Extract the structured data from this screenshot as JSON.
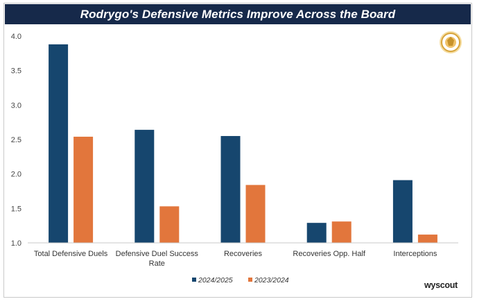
{
  "header": {
    "title": "Rodrygo's Defensive Metrics Improve Across the Board"
  },
  "brand": {
    "watermark_text": "wyscout",
    "logo_icon": "crest-logo-icon"
  },
  "colors": {
    "title_bar": "#16294a",
    "series_2024": "#16466e",
    "series_2023": "#e2763c",
    "axis": "#c8c8c8"
  },
  "chart_data": {
    "type": "bar",
    "title": "Rodrygo's Defensive Metrics Improve Across the Board",
    "xlabel": "",
    "ylabel": "",
    "ylim": [
      1.0,
      4.0
    ],
    "yticks": [
      "1.0",
      "1.5",
      "2.0",
      "2.5",
      "3.0",
      "3.5",
      "4.0"
    ],
    "categories": [
      "Total Defensive Duels",
      "Defensive Duel Success Rate",
      "Recoveries",
      "Recoveries Opp. Half",
      "Interceptions"
    ],
    "series": [
      {
        "name": "2024/2025",
        "values": [
          3.88,
          2.64,
          2.55,
          1.29,
          1.91
        ]
      },
      {
        "name": "2023/2024",
        "values": [
          2.54,
          1.53,
          1.84,
          1.31,
          1.12
        ]
      }
    ],
    "legend_position": "bottom-center",
    "grid": false
  }
}
